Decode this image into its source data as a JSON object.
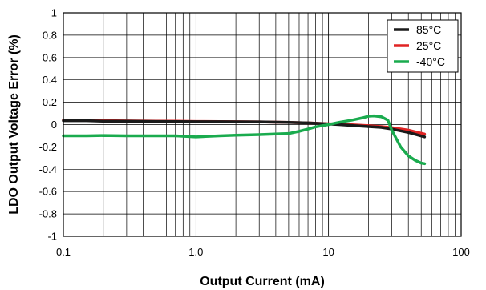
{
  "chart_data": {
    "type": "line",
    "title": "",
    "xlabel": "Output Current (mA)",
    "ylabel": "LDO Output Voltage Error (%)",
    "xscale": "log",
    "xlim": [
      0.1,
      100
    ],
    "ylim": [
      -1,
      1
    ],
    "xticks": [
      0.1,
      1,
      10,
      100
    ],
    "xtick_labels": [
      "0.1",
      "1.0",
      "10",
      "100"
    ],
    "yticks": [
      1,
      0.8,
      0.6,
      0.4,
      0.2,
      0,
      -0.2,
      -0.4,
      -0.6,
      -0.8,
      -1
    ],
    "ytick_labels": [
      "1",
      "0.8",
      "0.6",
      "0.4",
      "0.2",
      "0",
      "-0.2",
      "-0.4",
      "-0.6",
      "-0.8",
      "-1"
    ],
    "grid": true,
    "legend_position": "top-right",
    "series": [
      {
        "name": "85°C",
        "color": "#1a1a1a",
        "x": [
          0.1,
          0.15,
          0.2,
          0.3,
          0.5,
          0.7,
          1,
          1.5,
          2,
          3,
          5,
          7,
          10,
          12,
          15,
          20,
          25,
          30,
          40,
          53
        ],
        "y": [
          0.035,
          0.035,
          0.03,
          0.03,
          0.028,
          0.027,
          0.026,
          0.026,
          0.025,
          0.024,
          0.02,
          0.015,
          0.005,
          0.0,
          -0.008,
          -0.018,
          -0.025,
          -0.04,
          -0.07,
          -0.11
        ]
      },
      {
        "name": "25°C",
        "color": "#e02424",
        "x": [
          0.1,
          0.15,
          0.2,
          0.3,
          0.5,
          0.7,
          1,
          1.5,
          2,
          3,
          5,
          7,
          10,
          12,
          15,
          20,
          25,
          30,
          40,
          53
        ],
        "y": [
          0.04,
          0.038,
          0.035,
          0.033,
          0.03,
          0.03,
          0.028,
          0.027,
          0.026,
          0.024,
          0.02,
          0.015,
          0.007,
          0.003,
          -0.002,
          -0.01,
          -0.018,
          -0.028,
          -0.05,
          -0.085
        ]
      },
      {
        "name": "-40°C",
        "color": "#1aab4e",
        "x": [
          0.1,
          0.15,
          0.2,
          0.3,
          0.5,
          0.7,
          1,
          1.5,
          2,
          3,
          5,
          6,
          7,
          8,
          10,
          12,
          15,
          18,
          20,
          22,
          25,
          28,
          30,
          35,
          40,
          45,
          50,
          53
        ],
        "y": [
          -0.1,
          -0.1,
          -0.098,
          -0.1,
          -0.1,
          -0.1,
          -0.11,
          -0.1,
          -0.095,
          -0.09,
          -0.08,
          -0.06,
          -0.04,
          -0.02,
          0.0,
          0.02,
          0.04,
          0.06,
          0.075,
          0.078,
          0.07,
          0.04,
          -0.05,
          -0.2,
          -0.28,
          -0.32,
          -0.345,
          -0.35
        ]
      }
    ]
  }
}
